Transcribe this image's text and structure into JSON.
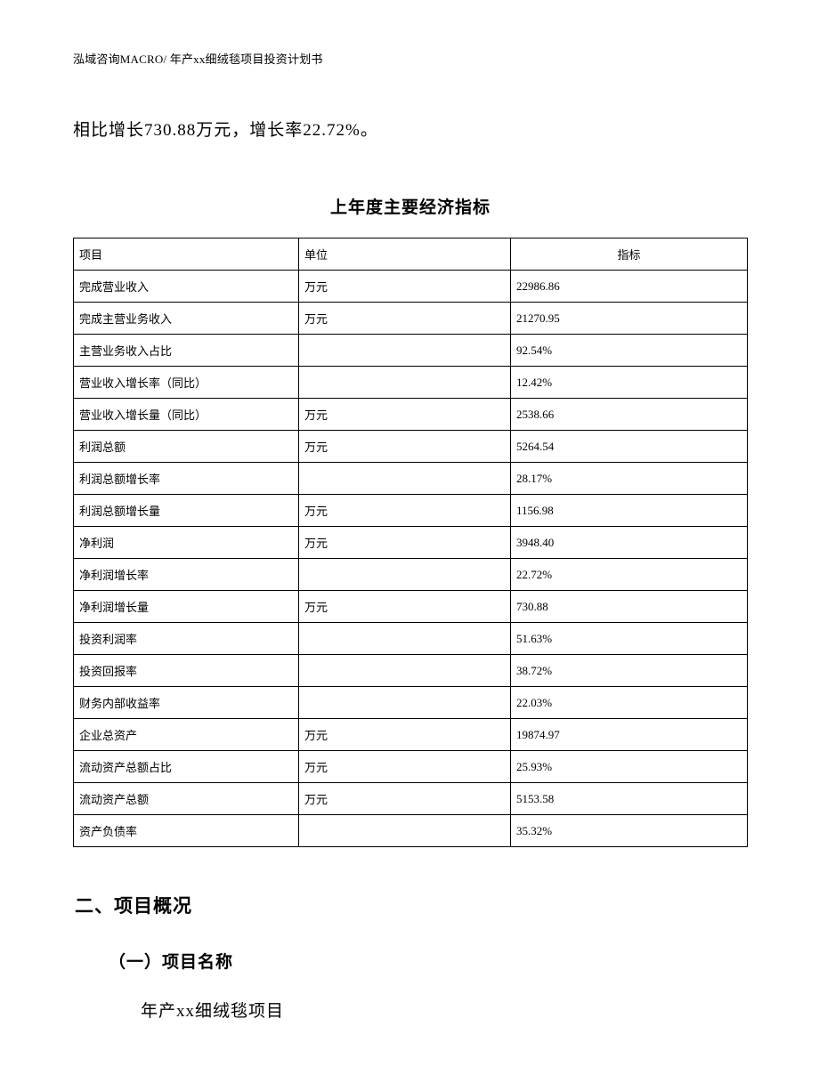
{
  "header": "泓域咨询MACRO/ 年产xx细绒毯项目投资计划书",
  "intro": "相比增长730.88万元，增长率22.72%。",
  "table": {
    "title": "上年度主要经济指标",
    "columns": [
      "项目",
      "单位",
      "指标"
    ],
    "rows": [
      [
        "完成营业收入",
        "万元",
        "22986.86"
      ],
      [
        "完成主营业务收入",
        "万元",
        "21270.95"
      ],
      [
        "主营业务收入占比",
        "",
        "92.54%"
      ],
      [
        "营业收入增长率（同比）",
        "",
        "12.42%"
      ],
      [
        "营业收入增长量（同比）",
        "万元",
        "2538.66"
      ],
      [
        "利润总额",
        "万元",
        "5264.54"
      ],
      [
        "利润总额增长率",
        "",
        "28.17%"
      ],
      [
        "利润总额增长量",
        "万元",
        "1156.98"
      ],
      [
        "净利润",
        "万元",
        "3948.40"
      ],
      [
        "净利润增长率",
        "",
        "22.72%"
      ],
      [
        "净利润增长量",
        "万元",
        "730.88"
      ],
      [
        "投资利润率",
        "",
        "51.63%"
      ],
      [
        "投资回报率",
        "",
        "38.72%"
      ],
      [
        "财务内部收益率",
        "",
        "22.03%"
      ],
      [
        "企业总资产",
        "万元",
        "19874.97"
      ],
      [
        "流动资产总额占比",
        "万元",
        "25.93%"
      ],
      [
        "流动资产总额",
        "万元",
        "5153.58"
      ],
      [
        "资产负债率",
        "",
        "35.32%"
      ]
    ]
  },
  "section2": {
    "heading": "二、项目概况",
    "sub": "（一）项目名称",
    "body": "年产xx细绒毯项目"
  }
}
